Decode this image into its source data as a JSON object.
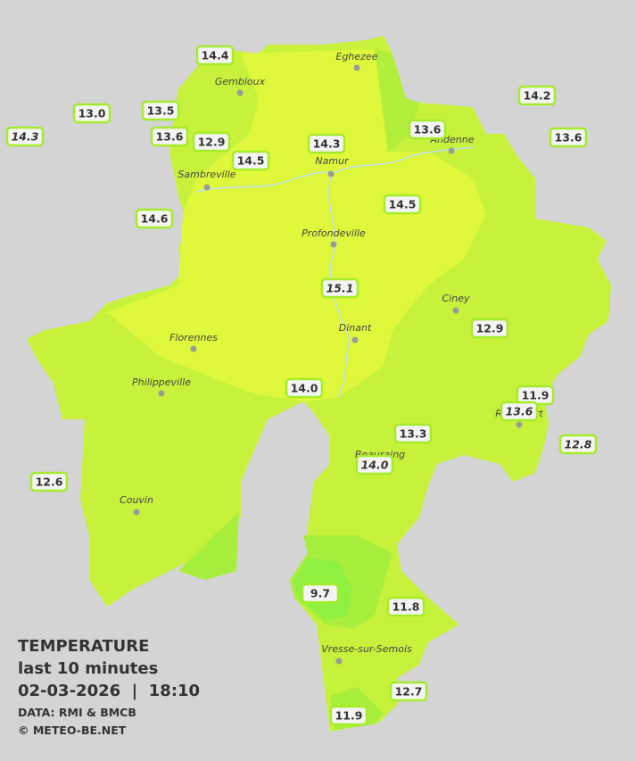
{
  "legend": {
    "title": "TEMPERATURE",
    "subtitle": "last 10 minutes",
    "datetime": "02-03-2026  |  18:10",
    "source": "DATA: RMI & BMCB",
    "credit": "© METEO-BE.NET"
  },
  "cities": [
    "Eghezee",
    "Gembloux",
    "Andenne",
    "Namur",
    "Sambreville",
    "Profondeville",
    "Ciney",
    "Florennes",
    "Dinant",
    "Philippeville",
    "Beauraing",
    "Rochefort",
    "Couvin",
    "Vresse-sur-Semois"
  ],
  "stations": [
    "14.4",
    "13.0",
    "13.5",
    "14.3",
    "13.6",
    "12.9",
    "14.5",
    "14.3",
    "13.6",
    "14.2",
    "13.6",
    "14.6",
    "14.5",
    "15.1",
    "12.9",
    "14.0",
    "11.9",
    "13.6",
    "12.8",
    "13.3",
    "14.0",
    "12.6",
    "9.7",
    "11.8",
    "12.7",
    "11.9"
  ]
}
